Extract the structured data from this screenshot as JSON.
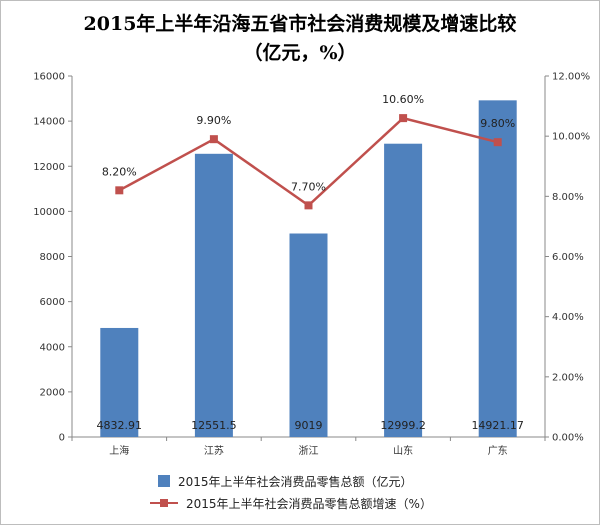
{
  "chart_data": {
    "type": "bar",
    "title": "2015年上半年沿海五省市社会消费规模及增速比较",
    "subtitle": "（亿元，%）",
    "categories": [
      "上海",
      "江苏",
      "浙江",
      "山东",
      "广东"
    ],
    "series": [
      {
        "name": "2015年上半年社会消费品零售总额（亿元）",
        "type": "bar",
        "axis": "left",
        "values": [
          4832.91,
          12551.5,
          9019,
          12999.2,
          14921.17
        ],
        "labels": [
          "4832.91",
          "12551.5",
          "9019",
          "12999.2",
          "14921.17"
        ],
        "color": "#4f81bd"
      },
      {
        "name": "2015年上半年社会消费品零售总额增速（%）",
        "type": "line",
        "axis": "right",
        "values": [
          8.2,
          9.9,
          7.7,
          10.6,
          9.8
        ],
        "labels": [
          "8.20%",
          "9.90%",
          "7.70%",
          "10.60%",
          "9.80%"
        ],
        "color": "#c0504d"
      }
    ],
    "y_left": {
      "min": 0,
      "max": 16000,
      "ticks": [
        "0",
        "2000",
        "4000",
        "6000",
        "8000",
        "10000",
        "12000",
        "14000",
        "16000"
      ]
    },
    "y_right": {
      "min": 0,
      "max": 12,
      "ticks": [
        "0.00%",
        "2.00%",
        "4.00%",
        "6.00%",
        "8.00%",
        "10.00%",
        "12.00%"
      ]
    },
    "grid": false,
    "legend_position": "bottom"
  }
}
